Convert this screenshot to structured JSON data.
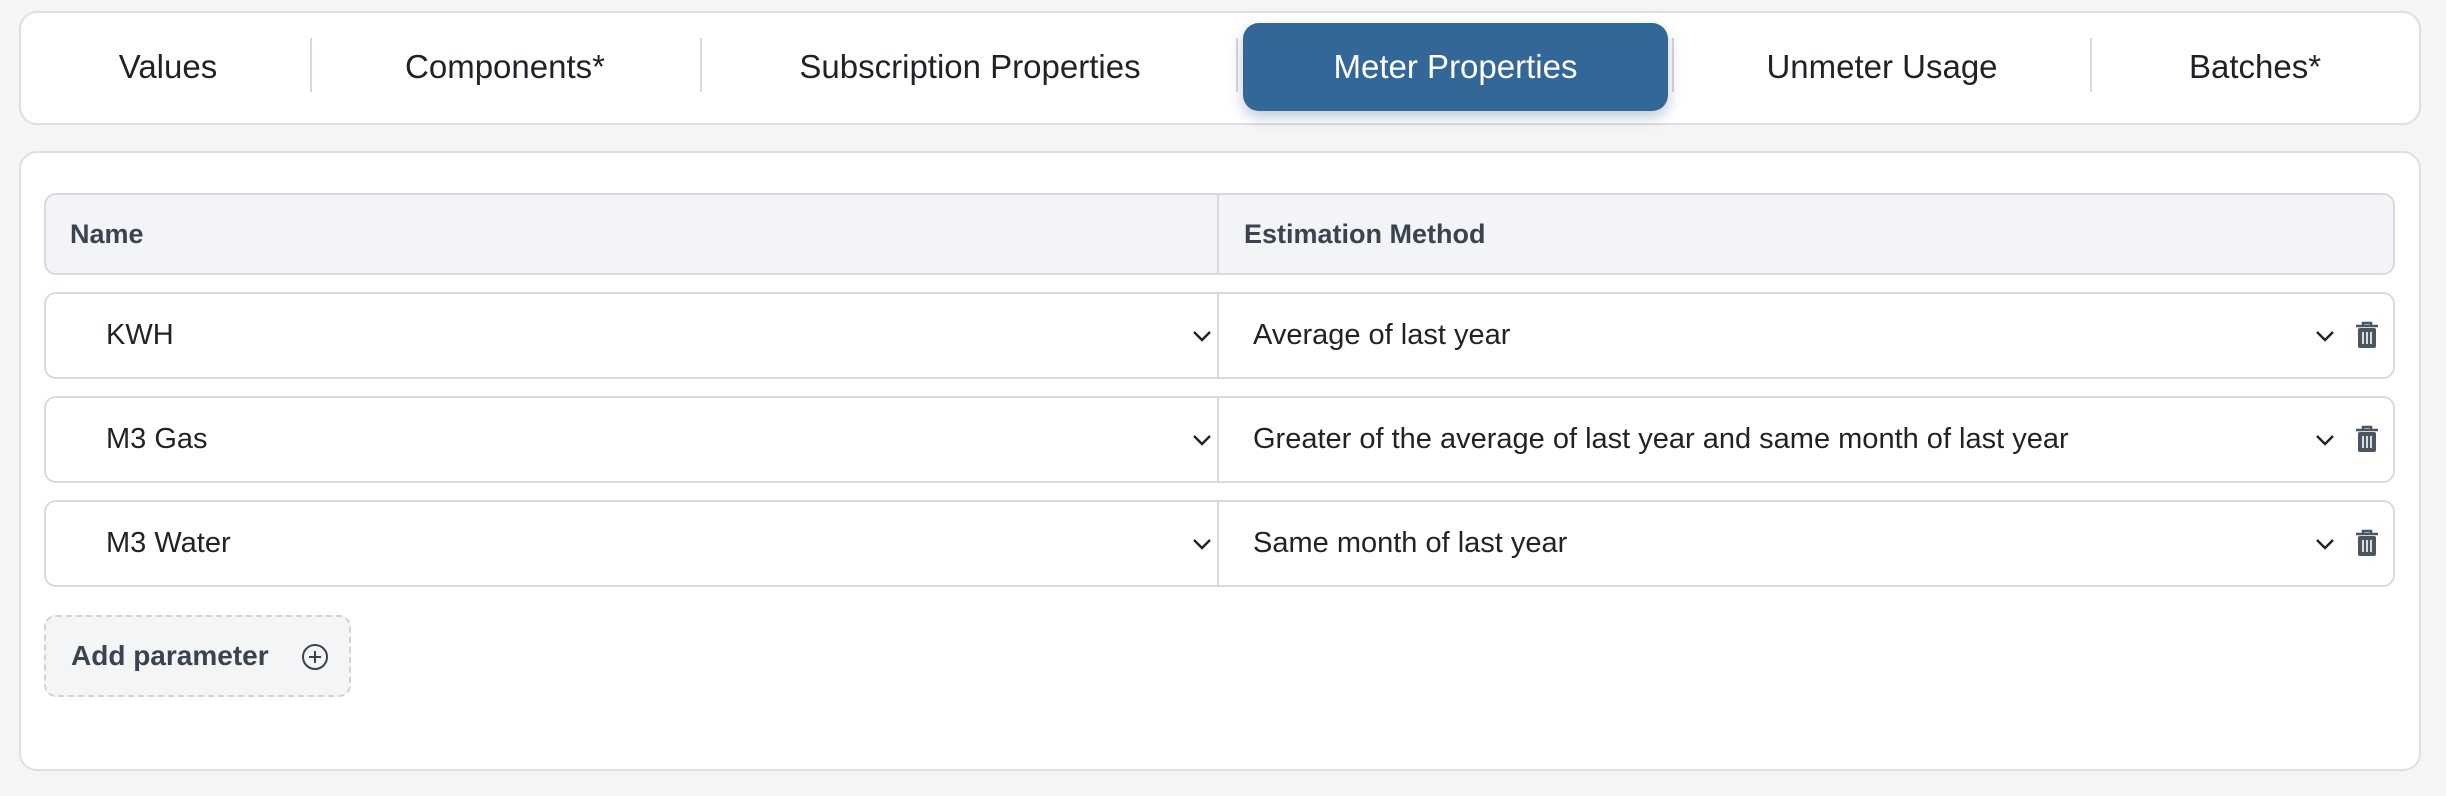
{
  "tabs": [
    {
      "label": "Values"
    },
    {
      "label": "Components*"
    },
    {
      "label": "Subscription Properties"
    },
    {
      "label": "Meter Properties"
    },
    {
      "label": "Unmeter Usage"
    },
    {
      "label": "Batches*"
    }
  ],
  "active_tab": 3,
  "table": {
    "headers": [
      "Name",
      "Estimation Method"
    ],
    "rows": [
      [
        "KWH",
        "Average of last year"
      ],
      [
        "M3 Gas",
        "Greater of the average of last year and same month of last year"
      ],
      [
        "M3 Water",
        "Same month of last year"
      ]
    ]
  },
  "add_button": "Add parameter"
}
